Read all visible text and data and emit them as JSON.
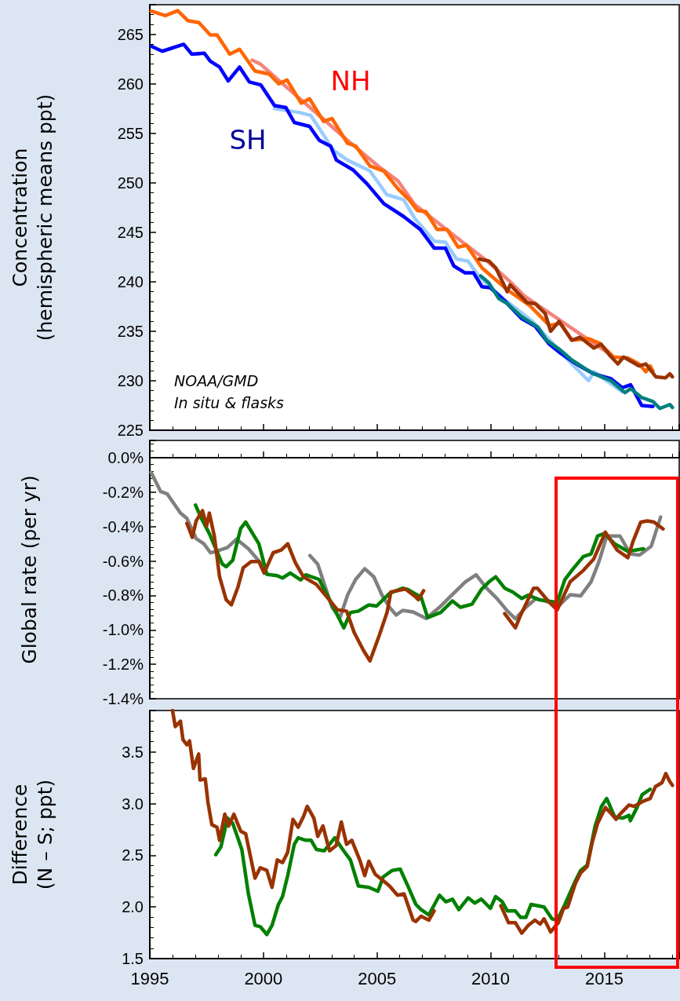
{
  "chart_data": [
    {
      "type": "line",
      "ylabel": "Concentration\n(hemispheric means ppt)",
      "xlim": [
        1995,
        2018.3
      ],
      "xticks": [
        1995,
        2000,
        2005,
        2010,
        2015
      ],
      "ylim": [
        225,
        268
      ],
      "yticks": [
        225,
        230,
        235,
        240,
        245,
        250,
        255,
        260,
        265
      ],
      "tick_labels": "y",
      "line_style": "solid",
      "annotations": [
        "NH",
        "SH",
        "NOAA/GMD\nIn situ & flasks"
      ],
      "series": [
        {
          "color": "#f4837d",
          "x": [
            1999.5,
            1999.87,
            2001.2,
            2002.46,
            2003.8,
            2005.05,
            2005.92,
            2006.66,
            2007.77,
            2008.88,
            2009.85,
            2010.86,
            2011.47,
            2015.3
          ],
          "values": [
            262.4,
            262.0,
            259.3,
            256.8,
            254.1,
            251.7,
            250.2,
            247.8,
            245.8,
            243.8,
            242.1,
            240.0,
            238.6,
            232.6
          ]
        },
        {
          "color": "#ff6600",
          "x": [
            1995.07,
            1995.68,
            1996.23,
            1996.67,
            1997.16,
            1997.66,
            1997.96,
            1998.52,
            1998.95,
            1999.63,
            2000.25,
            2000.68,
            2001.04,
            2001.66,
            2002.03,
            2002.65,
            2003.02,
            2003.7,
            2004.07,
            2004.69,
            2005.3,
            2005.92,
            2006.41,
            2006.78,
            2007.15,
            2007.64,
            2008.08,
            2008.57,
            2008.94,
            2009.62,
            2010.73,
            2011.72,
            2012.58,
            2013.07,
            2013.57,
            2014.31,
            2014.79,
            2015.41,
            2016.04,
            2016.53,
            2016.83,
            2017.02,
            2017.14
          ],
          "values": [
            267.35,
            266.9,
            267.4,
            266.4,
            266.2,
            264.95,
            264.95,
            263.0,
            263.5,
            261.3,
            261.0,
            260.0,
            260.4,
            258.05,
            258.5,
            256.2,
            256.5,
            254.0,
            253.7,
            251.7,
            251.2,
            249.4,
            248.3,
            247.2,
            247.1,
            245.3,
            245.3,
            243.5,
            243.7,
            241.4,
            239.2,
            237.6,
            235.6,
            235.8,
            234.1,
            234.25,
            233.8,
            232.4,
            232.3,
            231.7,
            230.9,
            231.5,
            231.0
          ]
        },
        {
          "color": "#99ccff",
          "x": [
            2000.49,
            2001.6,
            2002.09,
            2003.08,
            2003.7,
            2004.69,
            2005.43,
            2006.17,
            2006.66,
            2007.52,
            2008.01,
            2008.5,
            2009.0,
            2009.5,
            2010.61,
            2011.84,
            2013.32,
            2014.31,
            2014.55,
            2015.79
          ],
          "values": [
            257.5,
            257.1,
            256.8,
            253.3,
            252.3,
            251.2,
            248.8,
            248.3,
            246.4,
            244.1,
            244.0,
            242.3,
            242.1,
            240.5,
            238.2,
            236.0,
            232.3,
            230.0,
            230.9,
            228.9
          ]
        },
        {
          "color": "#0000ff",
          "x": [
            1995.07,
            1995.55,
            1996.49,
            1996.85,
            1997.4,
            1997.66,
            1998.07,
            1998.45,
            1998.95,
            1999.38,
            1999.88,
            2000.49,
            2000.99,
            2001.36,
            2002.03,
            2002.46,
            2002.96,
            2003.21,
            2003.95,
            2004.56,
            2005.3,
            2006.17,
            2006.9,
            2007.52,
            2008.01,
            2008.38,
            2008.88,
            2009.25,
            2009.62,
            2009.99,
            2010.61,
            2011.35,
            2011.96,
            2012.58,
            2013.07,
            2013.57,
            2014.06,
            2014.55,
            2015.3,
            2015.79,
            2016.16,
            2016.65,
            2017.14
          ],
          "values": [
            263.8,
            263.3,
            264.0,
            263.0,
            263.1,
            262.3,
            261.7,
            260.3,
            261.7,
            260.2,
            259.9,
            257.8,
            257.6,
            256.1,
            255.7,
            254.3,
            253.7,
            252.3,
            251.3,
            249.9,
            247.9,
            246.6,
            245.3,
            243.4,
            243.4,
            241.6,
            240.9,
            240.9,
            239.5,
            239.4,
            238.1,
            236.3,
            235.5,
            233.7,
            232.8,
            232.0,
            231.3,
            230.7,
            230.2,
            229.3,
            229.6,
            227.5,
            227.4
          ]
        },
        {
          "color": "#008080",
          "x": [
            2009.56,
            2009.92,
            2010.36,
            2010.73,
            2011.35,
            2012.09,
            2012.46,
            2013.07,
            2013.57,
            2014.18,
            2014.55,
            2015.3,
            2015.91,
            2016.16,
            2016.65,
            2017.14,
            2017.45,
            2017.89,
            2018.0
          ],
          "values": [
            240.6,
            239.9,
            238.3,
            237.8,
            236.5,
            235.4,
            234.1,
            233.1,
            232.1,
            231.2,
            230.7,
            230.0,
            228.8,
            229.2,
            228.3,
            227.9,
            227.2,
            227.6,
            227.3
          ]
        },
        {
          "color": "#993300",
          "x": [
            2009.5,
            2009.92,
            2010.23,
            2010.73,
            2010.86,
            2011.6,
            2011.96,
            2012.4,
            2012.64,
            2013.01,
            2013.57,
            2013.93,
            2014.55,
            2014.86,
            2015.23,
            2015.6,
            2015.85,
            2016.53,
            2016.83,
            2017.27,
            2017.7,
            2017.89,
            2018.0
          ],
          "values": [
            242.3,
            242.1,
            241.4,
            239.0,
            239.7,
            237.9,
            237.8,
            236.8,
            235.0,
            236.0,
            234.1,
            234.4,
            233.3,
            233.7,
            232.6,
            231.7,
            232.4,
            231.5,
            231.7,
            230.4,
            230.3,
            230.7,
            230.4
          ]
        }
      ]
    },
    {
      "type": "line",
      "ylabel": "Global rate (per yr)",
      "xlim": [
        1995,
        2018.3
      ],
      "xticks": [
        1995,
        2000,
        2005,
        2010,
        2015
      ],
      "ylim": [
        -1.4,
        0.1
      ],
      "yticks": [
        {
          "value": -1.4,
          "label": "-1.4%"
        },
        {
          "value": -1.2,
          "label": "-1.2%"
        },
        {
          "value": -1.0,
          "label": "-1.0%"
        },
        {
          "value": -0.8,
          "label": "-0.8%"
        },
        {
          "value": -0.6,
          "label": "-0.6%"
        },
        {
          "value": -0.4,
          "label": "-0.4%"
        },
        {
          "value": -0.2,
          "label": "-0.2%"
        },
        {
          "value": 0,
          "label": "0.0%"
        }
      ],
      "tick_labels": "y",
      "line_style": "solid",
      "series": [
        {
          "color": "#808080",
          "x": [
            1995.06,
            1995.48,
            1995.77,
            1996.35,
            1996.63,
            1997.04,
            1997.38,
            1997.67,
            1997.9,
            1998.42,
            1998.82,
            1999.34,
            1999.92,
            null,
            2002.05,
            2002.39,
            2003.02,
            2003.37,
            2003.71,
            2004.06,
            2004.46,
            2004.86,
            2005.21,
            2005.55,
            2005.84,
            2006.13,
            2006.59,
            2007.16,
            2007.75,
            2008.2,
            2008.89,
            2009.36,
            2009.82,
            2010.28,
            2010.74,
            2011.09,
            2011.55,
            2012.0,
            2012.58,
            2013.04,
            2013.5,
            2013.96,
            2014.42,
            2014.77,
            2015.11,
            2015.69,
            2016.15,
            2016.55,
            2017.07,
            2017.48
          ],
          "values": [
            -0.086,
            -0.197,
            -0.211,
            -0.322,
            -0.352,
            -0.47,
            -0.5,
            -0.552,
            -0.545,
            -0.522,
            -0.473,
            -0.529,
            -0.618,
            null,
            -0.569,
            -0.618,
            -0.869,
            -0.929,
            -0.796,
            -0.707,
            -0.645,
            -0.692,
            -0.796,
            -0.869,
            -0.914,
            -0.887,
            -0.896,
            -0.934,
            -0.869,
            -0.81,
            -0.721,
            -0.68,
            -0.758,
            -0.818,
            -0.891,
            -0.936,
            -0.869,
            -0.818,
            -0.84,
            -0.855,
            -0.796,
            -0.803,
            -0.721,
            -0.603,
            -0.455,
            -0.455,
            -0.559,
            -0.566,
            -0.514,
            -0.345
          ]
        },
        {
          "color": "#008000",
          "x": [
            1997.01,
            1997.27,
            1997.62,
            1998.19,
            1998.36,
            1998.65,
            1999.0,
            1999.22,
            1999.8,
            2000.15,
            2000.61,
            2000.84,
            2001.18,
            2001.64,
            2001.87,
            2002.45,
            2002.91,
            2003.31,
            2003.54,
            2003.83,
            2004.18,
            2004.64,
            2004.98,
            2005.55,
            2006.13,
            2006.36,
            2006.94,
            2007.23,
            2007.8,
            2008.32,
            2008.67,
            2009.18,
            2009.59,
            2009.93,
            2010.22,
            2010.62,
            2010.97,
            2011.37,
            2011.66,
            2012.12,
            2012.93,
            2013.27,
            2013.62,
            2014.08,
            2014.42,
            2014.71,
            2015.0,
            2015.46,
            2016.04,
            2016.73
          ],
          "values": [
            -0.275,
            -0.352,
            -0.441,
            -0.618,
            -0.633,
            -0.596,
            -0.411,
            -0.374,
            -0.5,
            -0.677,
            -0.685,
            -0.699,
            -0.67,
            -0.71,
            -0.68,
            -0.707,
            -0.825,
            -0.929,
            -0.988,
            -0.899,
            -0.891,
            -0.855,
            -0.862,
            -0.788,
            -0.758,
            -0.766,
            -0.81,
            -0.929,
            -0.899,
            -0.832,
            -0.869,
            -0.851,
            -0.766,
            -0.721,
            -0.692,
            -0.758,
            -0.78,
            -0.818,
            -0.798,
            -0.825,
            -0.84,
            -0.707,
            -0.647,
            -0.574,
            -0.559,
            -0.455,
            -0.441,
            -0.5,
            -0.544,
            -0.529
          ]
        },
        {
          "color": "#993300",
          "x": [
            1996.63,
            1996.87,
            1997.04,
            1997.32,
            1997.5,
            1997.62,
            1997.84,
            1998.07,
            1998.36,
            1998.59,
            1998.88,
            1999.11,
            1999.46,
            1999.8,
            2000.03,
            2000.43,
            2000.78,
            2001.07,
            2001.41,
            2001.76,
            2002.33,
            2002.8,
            2003.26,
            2003.66,
            2004.0,
            2004.41,
            2004.69,
            2005.1,
            2005.44,
            2005.61,
            2006.25,
            2006.71,
            2006.82,
            2007.05,
            null,
            2010.62,
            2011.09,
            2011.32,
            2011.89,
            2012.06,
            2012.58,
            2012.93,
            2013.5,
            2014.08,
            2014.54,
            2015.05,
            2015.57,
            2016.04,
            2016.27,
            2016.61,
            2016.9,
            2017.19,
            2017.59
          ],
          "values": [
            -0.381,
            -0.463,
            -0.367,
            -0.308,
            -0.396,
            -0.322,
            -0.455,
            -0.692,
            -0.825,
            -0.855,
            -0.751,
            -0.64,
            -0.603,
            -0.603,
            -0.67,
            -0.552,
            -0.537,
            -0.5,
            -0.611,
            -0.692,
            -0.736,
            -0.81,
            -0.884,
            -0.891,
            -1.017,
            -1.121,
            -1.18,
            -1.032,
            -0.899,
            -0.78,
            -0.763,
            -0.81,
            -0.825,
            -0.773,
            null,
            -0.906,
            -0.988,
            -0.914,
            -0.758,
            -0.758,
            -0.84,
            -0.884,
            -0.721,
            -0.655,
            -0.588,
            -0.433,
            -0.537,
            -0.581,
            -0.485,
            -0.374,
            -0.367,
            -0.374,
            -0.414
          ]
        }
      ]
    },
    {
      "type": "line",
      "ylabel": "Difference\n(N – S; ppt)",
      "xlim": [
        1995,
        2018.3
      ],
      "xticks": [
        1995,
        2000,
        2005,
        2010,
        2015
      ],
      "ylim": [
        1.5,
        3.9
      ],
      "yticks": [
        1.5,
        {
          "value": 2,
          "label": "2.0"
        },
        2.5,
        {
          "value": 3,
          "label": "3.0"
        },
        3.5
      ],
      "line_style": "solid",
      "series": [
        {
          "color": "#008000",
          "x": [
            1997.9,
            1998.13,
            1998.42,
            1998.65,
            1999.05,
            1999.34,
            1999.63,
            1999.86,
            2000.15,
            2000.38,
            2000.66,
            2000.84,
            2001.07,
            2001.36,
            2001.53,
            2001.87,
            2002.1,
            2002.33,
            2002.68,
            2003.14,
            2003.49,
            2003.83,
            2004.18,
            2004.64,
            2005.04,
            2005.27,
            2005.67,
            2006.02,
            2006.36,
            2006.71,
            2006.94,
            2007.28,
            2007.75,
            2008.03,
            2008.32,
            2008.6,
            2009.01,
            2009.3,
            2009.59,
            2009.99,
            2010.22,
            2010.51,
            2010.74,
            2011.09,
            2011.32,
            2011.55,
            2011.78,
            2012.35,
            2012.7,
            2012.93,
            2013.27,
            2013.73,
            2013.96,
            2014.25,
            2014.6,
            2014.88,
            2015.11,
            2015.46,
            2015.8,
            2016.09,
            2016.15,
            2016.44,
            2016.67,
            2017.02
          ],
          "values": [
            2.505,
            2.581,
            2.859,
            2.809,
            2.556,
            2.126,
            1.822,
            1.809,
            1.733,
            1.822,
            2.024,
            2.1,
            2.303,
            2.606,
            2.669,
            2.644,
            2.644,
            2.556,
            2.543,
            2.669,
            2.556,
            2.454,
            2.202,
            2.189,
            2.151,
            2.29,
            2.353,
            2.366,
            2.202,
            2.024,
            1.974,
            1.923,
            2.113,
            2.05,
            2.075,
            1.974,
            2.088,
            2.037,
            2.075,
            1.986,
            2.1,
            2.05,
            1.961,
            1.961,
            1.898,
            1.898,
            2.024,
            1.999,
            1.885,
            1.872,
            2.024,
            2.252,
            2.353,
            2.404,
            2.783,
            2.973,
            3.049,
            2.872,
            2.859,
            2.885,
            2.834,
            2.961,
            3.087,
            3.138
          ]
        },
        {
          "color": "#993300",
          "x": [
            1996.0,
            1996.12,
            1996.35,
            1996.46,
            1996.63,
            1996.75,
            1996.92,
            1997.15,
            1997.21,
            1997.44,
            1997.56,
            1997.73,
            1997.96,
            1998.07,
            1998.3,
            1998.47,
            1998.7,
            1999.0,
            1999.22,
            1999.63,
            1999.86,
            2000.15,
            2000.38,
            2000.61,
            2000.84,
            2001.07,
            2001.3,
            2001.53,
            2001.76,
            2001.93,
            2002.22,
            2002.39,
            2002.62,
            2002.8,
            2002.91,
            2003.2,
            2003.43,
            2003.66,
            2003.89,
            2004.24,
            2004.46,
            2004.64,
            2004.92,
            2005.21,
            2005.55,
            2005.9,
            2006.19,
            2006.59,
            2006.71,
            2006.94,
            2007.28,
            2007.51,
            null,
            2010.45,
            2010.79,
            2011.09,
            2011.37,
            2011.66,
            2011.95,
            2012.18,
            2012.35,
            2012.64,
            2012.98,
            2013.21,
            2013.39,
            2013.73,
            2013.96,
            2014.25,
            2014.48,
            2014.71,
            2015.05,
            2015.28,
            2015.52,
            2015.69,
            2016.09,
            2016.32,
            2016.73,
            2017.02,
            2017.25,
            2017.54,
            2017.71,
            2017.88,
            2018.0
          ],
          "values": [
            3.9,
            3.745,
            3.796,
            3.618,
            3.568,
            3.606,
            3.34,
            3.479,
            3.227,
            3.239,
            3.011,
            2.796,
            2.771,
            2.644,
            2.897,
            2.783,
            2.897,
            2.733,
            2.708,
            2.278,
            2.379,
            2.353,
            2.189,
            2.454,
            2.429,
            2.53,
            2.847,
            2.771,
            2.872,
            2.973,
            2.859,
            2.682,
            2.783,
            2.631,
            2.543,
            2.594,
            2.821,
            2.606,
            2.644,
            2.454,
            2.303,
            2.442,
            2.316,
            2.265,
            2.202,
            2.113,
            2.126,
            1.872,
            1.86,
            1.91,
            1.872,
            1.961,
            null,
            2.012,
            1.847,
            1.847,
            1.746,
            1.822,
            1.872,
            1.834,
            1.885,
            1.758,
            1.847,
            1.986,
            1.999,
            2.227,
            2.328,
            2.391,
            2.631,
            2.809,
            2.961,
            2.91,
            2.847,
            2.897,
            2.986,
            2.973,
            3.024,
            3.049,
            3.163,
            3.201,
            3.29,
            3.214,
            3.176
          ]
        }
      ]
    }
  ]
}
